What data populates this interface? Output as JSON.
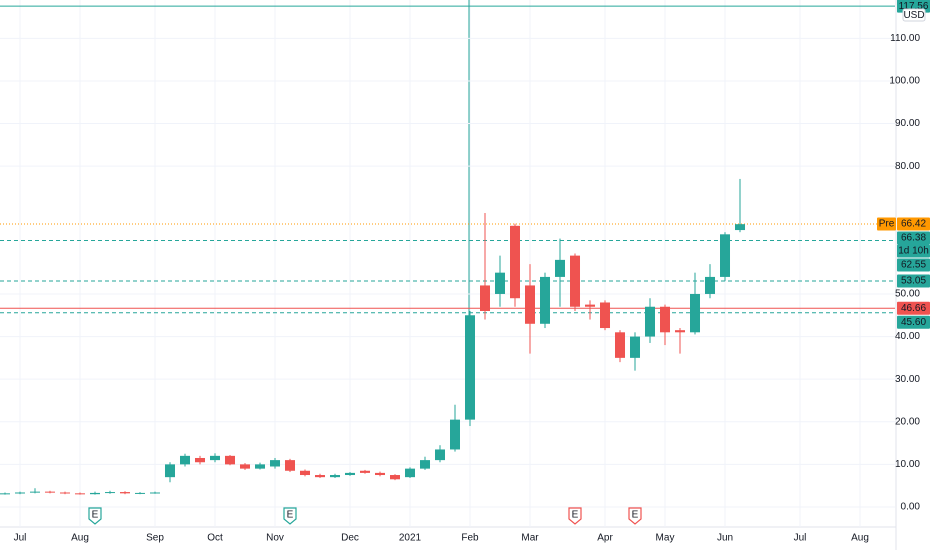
{
  "chart_data": {
    "type": "candlestick",
    "x": [
      0,
      1,
      2,
      3,
      4,
      5,
      6,
      7,
      8,
      9,
      10,
      11,
      12,
      13,
      14,
      15,
      16,
      17,
      18,
      19,
      20,
      21,
      22,
      23,
      24,
      25,
      26,
      27,
      28,
      29,
      30,
      31,
      32,
      33,
      34,
      35,
      36,
      37,
      38,
      39,
      40,
      41,
      42,
      43,
      44,
      45,
      46,
      47,
      48,
      49
    ],
    "open": [
      3.0,
      3.2,
      3.4,
      3.6,
      3.4,
      3.2,
      3.0,
      3.3,
      3.5,
      3.2,
      3.3,
      7.0,
      10.0,
      11.5,
      11.0,
      12.0,
      10.0,
      9.0,
      9.5,
      11.0,
      8.5,
      7.5,
      7.0,
      7.5,
      8.5,
      8.0,
      7.5,
      7.0,
      9.0,
      11.0,
      13.5,
      20.5,
      52.0,
      50.0,
      66.0,
      52.0,
      43.0,
      54.0,
      59.0,
      47.5,
      48.0,
      41.0,
      35.0,
      40.0,
      47.0,
      41.5,
      41.0,
      50.0,
      54.0,
      65.0
    ],
    "high": [
      3.4,
      3.6,
      4.4,
      3.8,
      3.6,
      3.4,
      3.6,
      3.8,
      3.7,
      3.5,
      3.6,
      10.5,
      12.5,
      12.0,
      12.6,
      12.2,
      10.3,
      10.4,
      11.5,
      11.3,
      8.8,
      7.8,
      7.8,
      8.2,
      8.7,
      8.3,
      7.7,
      9.3,
      11.8,
      14.5,
      24.0,
      46.0,
      69.0,
      59.0,
      66.5,
      57.0,
      55.0,
      63.0,
      59.5,
      48.5,
      48.5,
      41.5,
      41.0,
      49.0,
      47.5,
      42.0,
      55.0,
      57.0,
      64.5,
      77.0
    ],
    "low": [
      2.9,
      3.0,
      3.2,
      3.2,
      3.0,
      2.9,
      2.9,
      3.1,
      3.0,
      3.0,
      3.1,
      5.8,
      9.5,
      10.0,
      10.5,
      9.8,
      8.7,
      8.8,
      9.0,
      8.2,
      7.2,
      6.8,
      6.8,
      7.3,
      7.8,
      7.2,
      6.3,
      6.8,
      8.7,
      10.5,
      13.0,
      19.0,
      44.0,
      47.0,
      47.0,
      36.0,
      42.0,
      47.0,
      46.0,
      44.0,
      41.5,
      34.0,
      32.0,
      38.5,
      38.0,
      36.0,
      40.5,
      49.0,
      53.0,
      64.5
    ],
    "close": [
      3.2,
      3.4,
      3.6,
      3.4,
      3.2,
      3.0,
      3.3,
      3.5,
      3.2,
      3.3,
      3.4,
      10.0,
      12.0,
      10.5,
      12.0,
      10.0,
      9.0,
      10.0,
      11.0,
      8.5,
      7.5,
      7.0,
      7.5,
      8.0,
      8.0,
      7.5,
      6.5,
      9.0,
      11.0,
      13.5,
      20.5,
      45.0,
      46.0,
      55.0,
      49.0,
      43.0,
      54.0,
      58.0,
      47.0,
      47.0,
      42.0,
      35.0,
      40.0,
      47.0,
      41.0,
      41.0,
      50.0,
      54.0,
      64.0,
      66.38
    ],
    "up_color": "#26a69a",
    "down_color": "#ef5350",
    "xlim": [
      -0.333,
      59.333
    ],
    "ylim": [
      -4.7,
      119
    ],
    "xticks": [
      {
        "value": 1,
        "label": "Jul"
      },
      {
        "value": 5,
        "label": "Aug"
      },
      {
        "value": 10,
        "label": "Sep"
      },
      {
        "value": 14,
        "label": "Oct"
      },
      {
        "value": 18,
        "label": "Nov"
      },
      {
        "value": 23,
        "label": "Dec"
      },
      {
        "value": 27,
        "label": "2021"
      },
      {
        "value": 31,
        "label": "Feb"
      },
      {
        "value": 35,
        "label": "Mar"
      },
      {
        "value": 40,
        "label": "Apr"
      },
      {
        "value": 44,
        "label": "May"
      },
      {
        "value": 48,
        "label": "Jun"
      },
      {
        "value": 53,
        "label": "Jul"
      },
      {
        "value": 57,
        "label": "Aug"
      }
    ],
    "yticks": [
      {
        "value": 0,
        "label": "0.00"
      },
      {
        "value": 10,
        "label": "10.00"
      },
      {
        "value": 20,
        "label": "20.00"
      },
      {
        "value": 30,
        "label": "30.00"
      },
      {
        "value": 40,
        "label": "40.00"
      },
      {
        "value": 50,
        "label": "50.00"
      },
      {
        "value": 80,
        "label": "80.00"
      },
      {
        "value": 90,
        "label": "90.00"
      },
      {
        "value": 100,
        "label": "100.00"
      },
      {
        "value": 110,
        "label": "110.00"
      }
    ],
    "grid": true,
    "currency": "USD",
    "price_lines": [
      {
        "value": 117.56,
        "label": "117.56",
        "color": "#26a69a",
        "style": "solid"
      },
      {
        "value": 66.42,
        "label": "66.42",
        "tag": "Pre",
        "color": "#ff9800",
        "style": "dotted"
      },
      {
        "value": 66.38,
        "label": "66.38",
        "sublabel": "1d 10h",
        "color": "#26a69a",
        "style": "none"
      },
      {
        "value": 62.55,
        "label": "62.55",
        "color": "#26a69a",
        "style": "dashed"
      },
      {
        "value": 53.05,
        "label": "53.05",
        "color": "#26a69a",
        "style": "dashed"
      },
      {
        "value": 46.66,
        "label": "46.66",
        "color": "#ef5350",
        "style": "solid"
      },
      {
        "value": 45.6,
        "label": "45.60",
        "color": "#26a69a",
        "style": "dashed"
      }
    ],
    "events": [
      {
        "x": 6,
        "label": "E",
        "color": "#26a69a"
      },
      {
        "x": 19,
        "label": "E",
        "color": "#26a69a"
      },
      {
        "x": 38,
        "label": "E",
        "color": "#ef5350"
      },
      {
        "x": 42,
        "label": "E",
        "color": "#ef5350"
      }
    ]
  }
}
